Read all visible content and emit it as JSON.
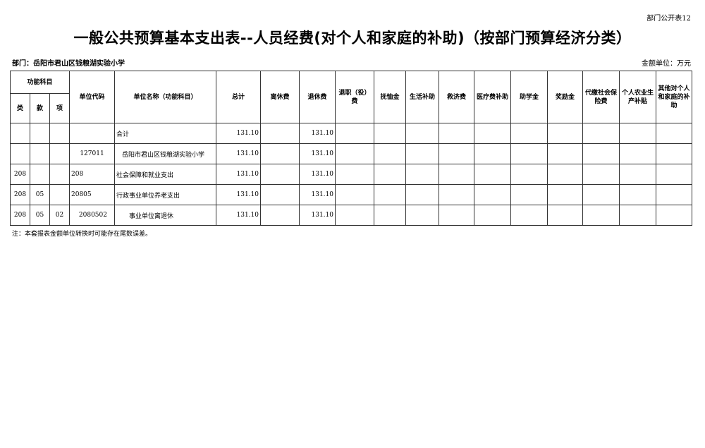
{
  "form_no": "部门公开表12",
  "title": "一般公共预算基本支出表--人员经费(对个人和家庭的补助)（按部门预算经济分类）",
  "department": "部门：岳阳市君山区钱粮湖实验小学",
  "unit": "金额单位：万元",
  "headers": {
    "group": "功能科目",
    "lei": "类",
    "kuan": "款",
    "xiang": "项",
    "code": "单位代码",
    "name": "单位名称（功能科目）",
    "cols": [
      "总计",
      "离休费",
      "退休费",
      "退职（役）费",
      "抚恤金",
      "生活补助",
      "救济费",
      "医疗费补助",
      "助学金",
      "奖励金",
      "代缴社会保险费",
      "个人农业生产补贴",
      "其他对个人和家庭的补助"
    ]
  },
  "rows": [
    {
      "lei": "",
      "kuan": "",
      "xiang": "",
      "code": "",
      "name": "合计",
      "total": "131.10",
      "retire": "131.10"
    },
    {
      "lei": "",
      "kuan": "",
      "xiang": "",
      "code": "127011",
      "name": "岳阳市君山区钱粮湖实验小学",
      "total": "131.10",
      "retire": "131.10"
    },
    {
      "lei": "208",
      "kuan": "",
      "xiang": "",
      "code": "208",
      "name": "社会保障和就业支出",
      "total": "131.10",
      "retire": "131.10"
    },
    {
      "lei": "208",
      "kuan": "05",
      "xiang": "",
      "code": "20805",
      "name": "行政事业单位养老支出",
      "total": "131.10",
      "retire": "131.10"
    },
    {
      "lei": "208",
      "kuan": "05",
      "xiang": "02",
      "code": "2080502",
      "name": "事业单位离退休",
      "total": "131.10",
      "retire": "131.10"
    }
  ],
  "note": "注：本套报表金额单位转换时可能存在尾数误差。"
}
